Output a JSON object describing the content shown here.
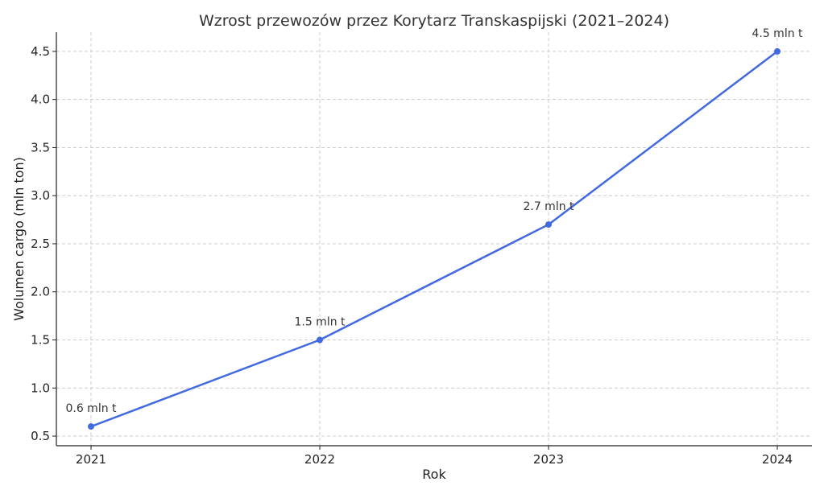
{
  "chart_data": {
    "type": "line",
    "title": "Wzrost przewozów przez Korytarz Transkaspijski (2021–2024)",
    "xlabel": "Rok",
    "ylabel": "Wolumen cargo (mln ton)",
    "categories": [
      "2021",
      "2022",
      "2023",
      "2024"
    ],
    "series": [
      {
        "values": [
          0.6,
          1.5,
          2.7,
          4.5
        ],
        "color": "#4169e1",
        "labels": [
          "0.6 mln t",
          "1.5 mln t",
          "2.7 mln t",
          "4.5 mln t"
        ]
      }
    ],
    "ylim": [
      0.4,
      4.7
    ],
    "yticks": [
      "0.5",
      "1.0",
      "1.5",
      "2.0",
      "2.5",
      "3.0",
      "3.5",
      "4.0",
      "4.5"
    ],
    "grid": true,
    "marker": "circle"
  }
}
